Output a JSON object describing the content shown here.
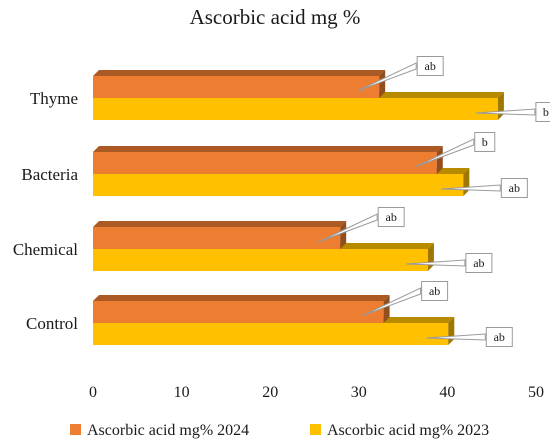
{
  "chart_data": {
    "type": "bar",
    "orientation": "horizontal",
    "title": "Ascorbic acid mg %",
    "categories": [
      "Thyme",
      "Bacteria",
      "Chemical",
      "Control"
    ],
    "series": [
      {
        "name": "Ascorbic acid mg% 2024",
        "values": [
          32.3,
          38.8,
          27.9,
          32.8
        ],
        "labels": [
          "ab",
          "b",
          "ab",
          "ab"
        ],
        "color": "#ED7D31"
      },
      {
        "name": "Ascorbic acid mg% 2023",
        "values": [
          45.7,
          41.8,
          37.8,
          40.1
        ],
        "labels": [
          "b",
          "ab",
          "ab",
          "ab"
        ],
        "color": "#FFC000"
      }
    ],
    "x_ticks": [
      0,
      10,
      20,
      30,
      40,
      50
    ],
    "xlim": [
      0,
      50
    ],
    "legend_position": "bottom",
    "grid": false
  }
}
